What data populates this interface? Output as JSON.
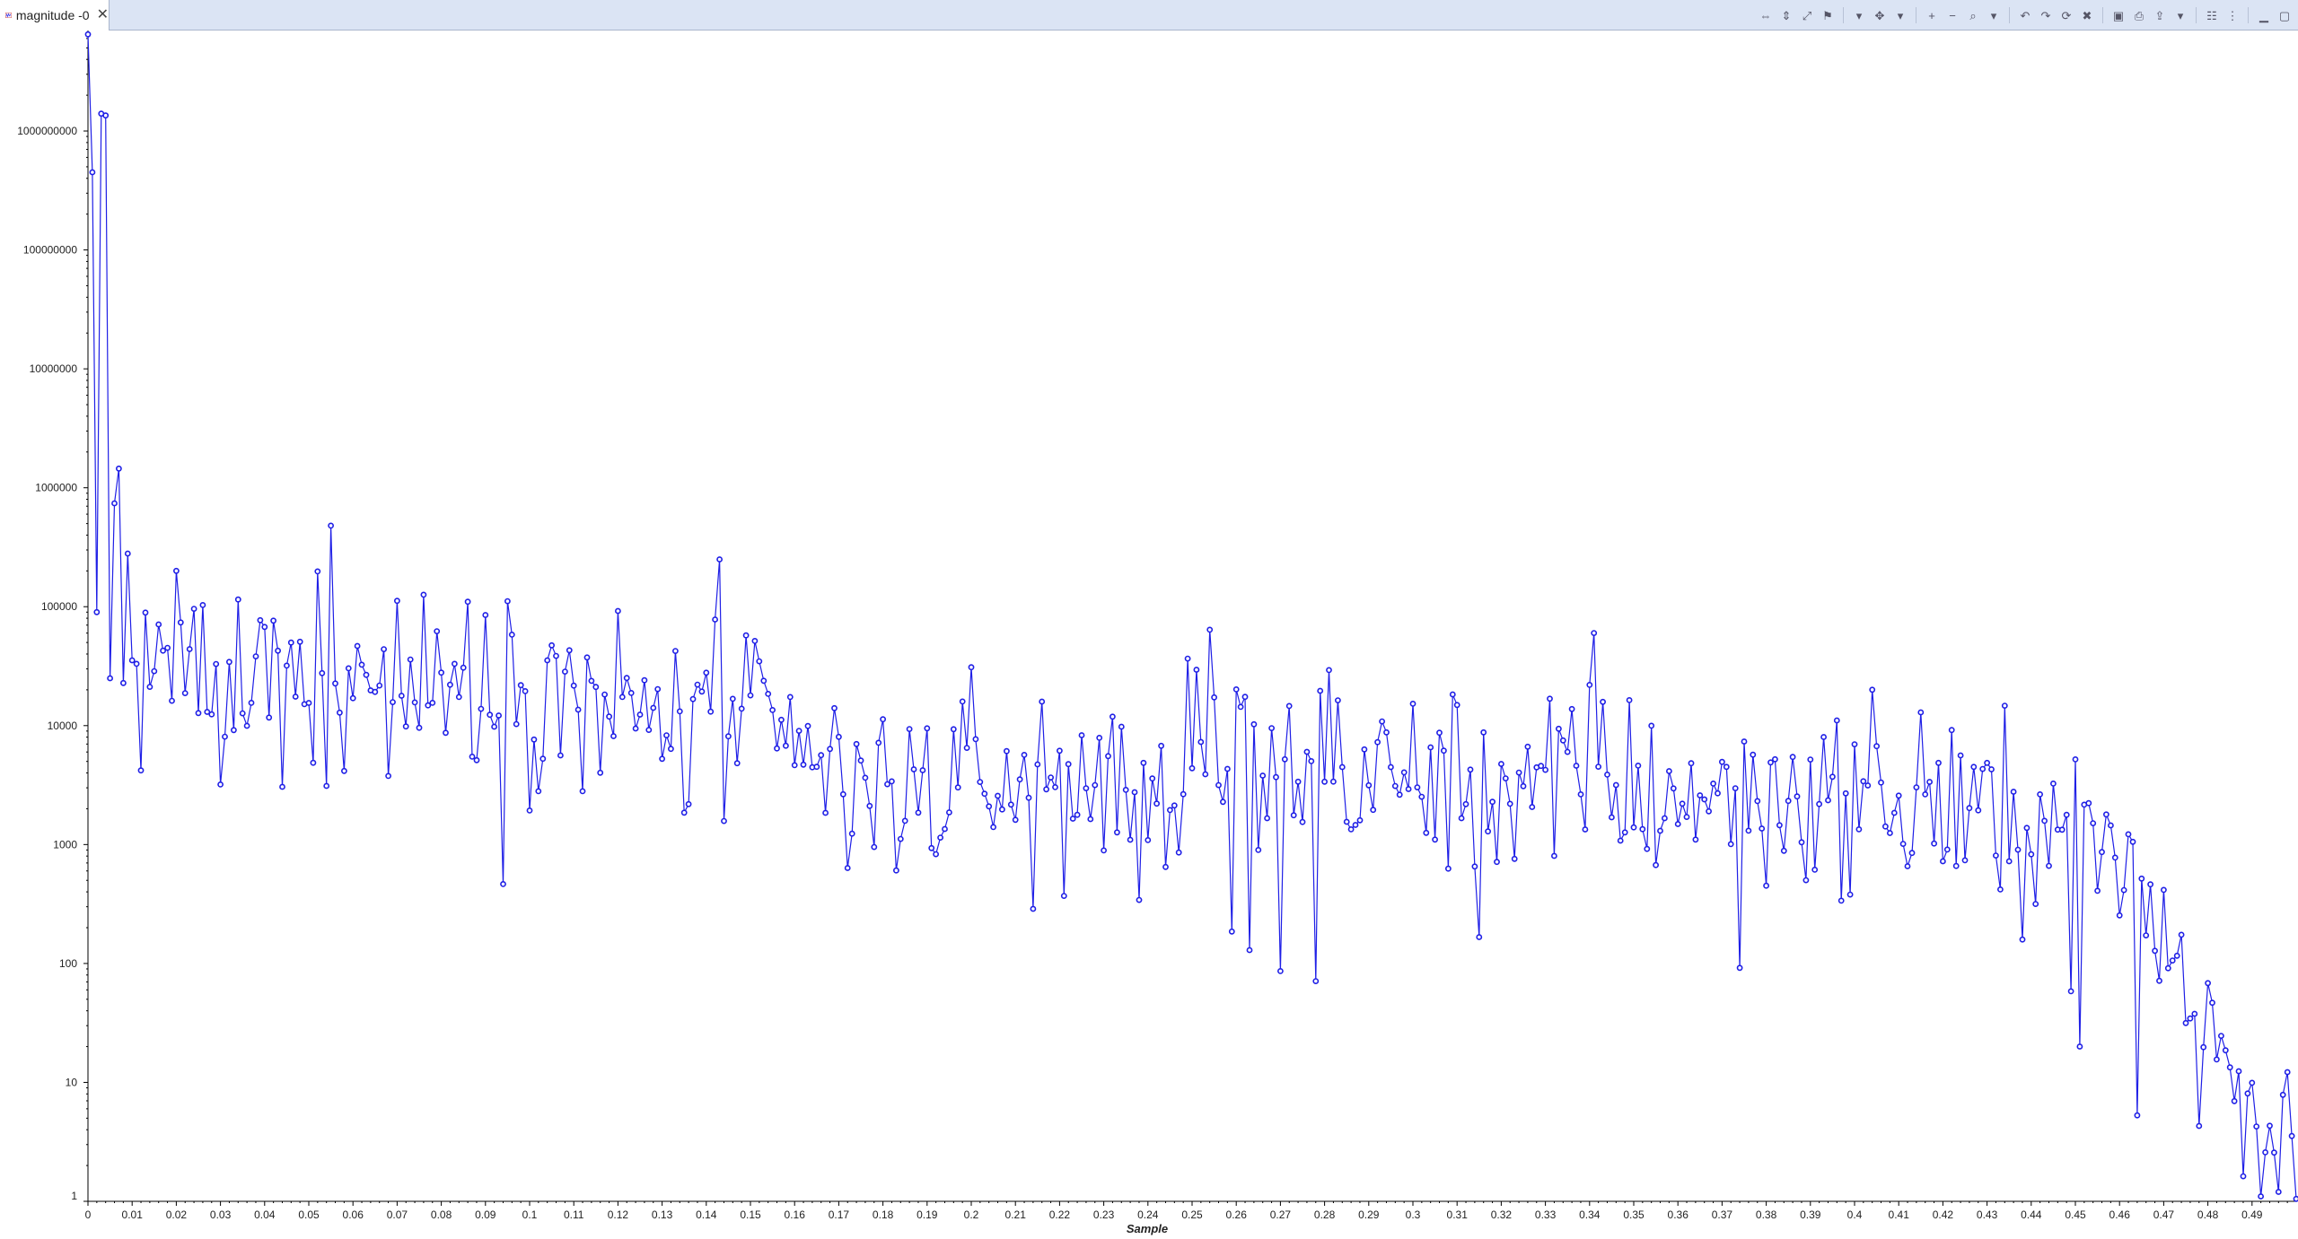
{
  "tab": {
    "title": "magnitude -0",
    "close": "✕"
  },
  "toolbar": {
    "buttons": [
      {
        "name": "auto-scale-x-icon",
        "glyph": "⇔"
      },
      {
        "name": "auto-scale-y-icon",
        "glyph": "⇕"
      },
      {
        "name": "auto-scale-both-icon",
        "glyph": "⤢"
      },
      {
        "name": "stagger-axes-icon",
        "glyph": "⚑"
      },
      {
        "name": "dropdown-arrow-icon",
        "glyph": "▾"
      },
      {
        "name": "pan-icon",
        "glyph": "✥"
      },
      {
        "name": "dropdown-arrow-icon",
        "glyph": "▾"
      },
      {
        "name": "zoom-in-icon",
        "glyph": "+"
      },
      {
        "name": "zoom-out-icon",
        "glyph": "−"
      },
      {
        "name": "zoom-area-icon",
        "glyph": "⌕"
      },
      {
        "name": "dropdown-arrow-icon",
        "glyph": "▾"
      },
      {
        "name": "undo-icon",
        "glyph": "↶"
      },
      {
        "name": "redo-icon",
        "glyph": "↷"
      },
      {
        "name": "refresh-icon",
        "glyph": "⟳"
      },
      {
        "name": "clear-icon",
        "glyph": "✖"
      },
      {
        "name": "snapshot-icon",
        "glyph": "▣"
      },
      {
        "name": "print-icon",
        "glyph": "⎙"
      },
      {
        "name": "export-icon",
        "glyph": "⇪"
      },
      {
        "name": "dropdown-arrow-icon",
        "glyph": "▾"
      },
      {
        "name": "properties-icon",
        "glyph": "☷"
      },
      {
        "name": "view-menu-icon",
        "glyph": "⋮"
      },
      {
        "name": "minimize-icon",
        "glyph": "▁"
      },
      {
        "name": "maximize-icon",
        "glyph": "▢"
      }
    ]
  },
  "colors": {
    "series": "#1f1fe6",
    "marker_fill": "#ffffff",
    "axis": "#000000"
  },
  "chart_data": {
    "type": "line",
    "y_scale": "log",
    "xlabel": "Sample",
    "ylabel": "",
    "xlim": [
      0,
      0.5
    ],
    "ylim": [
      1,
      7000000000
    ],
    "x_ticks": [
      "0",
      "0.01",
      "0.02",
      "0.03",
      "0.04",
      "0.05",
      "0.06",
      "0.07",
      "0.08",
      "0.09",
      "0.1",
      "0.11",
      "0.12",
      "0.13",
      "0.14",
      "0.15",
      "0.16",
      "0.17",
      "0.18",
      "0.19",
      "0.2",
      "0.21",
      "0.22",
      "0.23",
      "0.24",
      "0.25",
      "0.26",
      "0.27",
      "0.28",
      "0.29",
      "0.3",
      "0.31",
      "0.32",
      "0.33",
      "0.34",
      "0.35",
      "0.36",
      "0.37",
      "0.38",
      "0.39",
      "0.4",
      "0.41",
      "0.42",
      "0.43",
      "0.44",
      "0.45",
      "0.46",
      "0.47",
      "0.48",
      "0.49"
    ],
    "y_ticks": [
      "1",
      "10",
      "100",
      "1000",
      "10000",
      "100000",
      "1000000",
      "10000000",
      "100000000",
      "1000000000"
    ],
    "series": [
      {
        "sample_interval": 0.001,
        "trend": [
          [
            0.0,
            4.75
          ],
          [
            0.01,
            4.6
          ],
          [
            0.03,
            4.45
          ],
          [
            0.05,
            4.5
          ],
          [
            0.07,
            4.35
          ],
          [
            0.09,
            4.3
          ],
          [
            0.11,
            4.25
          ],
          [
            0.13,
            4.05
          ],
          [
            0.15,
            3.95
          ],
          [
            0.17,
            3.55
          ],
          [
            0.2,
            3.45
          ],
          [
            0.23,
            3.45
          ],
          [
            0.26,
            3.6
          ],
          [
            0.28,
            3.6
          ],
          [
            0.3,
            3.55
          ],
          [
            0.33,
            3.5
          ],
          [
            0.36,
            3.45
          ],
          [
            0.39,
            3.4
          ],
          [
            0.42,
            3.4
          ],
          [
            0.44,
            3.2
          ],
          [
            0.45,
            3.0
          ],
          [
            0.46,
            2.7
          ],
          [
            0.47,
            2.3
          ],
          [
            0.48,
            1.6
          ],
          [
            0.49,
            0.95
          ],
          [
            0.5,
            0.85
          ]
        ],
        "noise_dex": 0.38,
        "points": [
          [
            0.0,
            6500000000
          ],
          [
            0.001,
            450000000
          ],
          [
            0.002,
            90000
          ],
          [
            0.003,
            1400000000
          ],
          [
            0.004,
            1350000000
          ],
          [
            0.005,
            25000
          ],
          [
            0.006,
            740000
          ],
          [
            0.007,
            1450000
          ],
          [
            0.009,
            280000
          ],
          [
            0.012,
            4200
          ],
          [
            0.0305,
            3200
          ],
          [
            0.055,
            690000
          ],
          [
            0.0555,
            480000
          ],
          [
            0.086,
            110000
          ],
          [
            0.143,
            250000
          ],
          [
            0.1425,
            78000
          ],
          [
            0.2,
            31000
          ],
          [
            0.254,
            64000
          ],
          [
            0.341,
            60000
          ],
          [
            0.3405,
            22000
          ],
          [
            0.45,
            5200
          ],
          [
            0.4515,
            20
          ],
          [
            0.4785,
            4.3
          ],
          [
            0.492,
            1.1
          ],
          [
            0.496,
            1.2
          ]
        ]
      }
    ]
  }
}
